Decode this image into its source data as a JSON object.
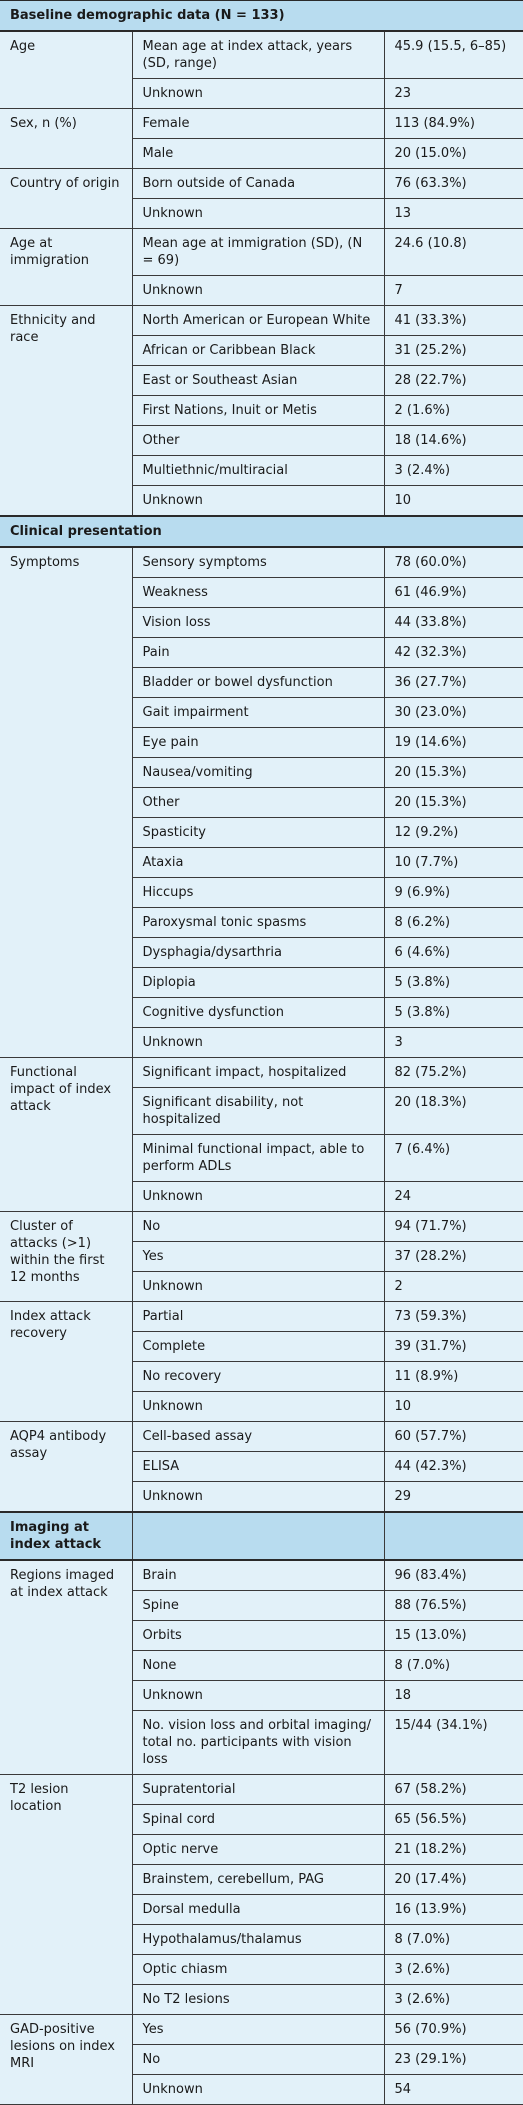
{
  "table": {
    "sections": [
      {
        "title": "Baseline demographic data (N = 133)",
        "groups": [
          {
            "label": "Age",
            "rows": [
              [
                "Mean age at index attack, years (SD, range)",
                "45.9 (15.5, 6–85)"
              ],
              [
                "Unknown",
                "23"
              ]
            ]
          },
          {
            "label": "Sex, n (%)",
            "rows": [
              [
                "Female",
                "113 (84.9%)"
              ],
              [
                "Male",
                "20 (15.0%)"
              ]
            ]
          },
          {
            "label": "Country of origin",
            "rows": [
              [
                "Born outside of Canada",
                "76 (63.3%)"
              ],
              [
                "Unknown",
                "13"
              ]
            ]
          },
          {
            "label": "Age at immigration",
            "rows": [
              [
                "Mean age at immigration (SD), (N = 69)",
                "24.6 (10.8)"
              ],
              [
                "Unknown",
                "7"
              ]
            ]
          },
          {
            "label": "Ethnicity and race",
            "rows": [
              [
                "North American or European White",
                "41 (33.3%)"
              ],
              [
                "African or Caribbean Black",
                "31 (25.2%)"
              ],
              [
                "East or Southeast Asian",
                "28 (22.7%)"
              ],
              [
                "First Nations, Inuit or Metis",
                "2 (1.6%)"
              ],
              [
                "Other",
                "18 (14.6%)"
              ],
              [
                "Multiethnic/multiracial",
                "3 (2.4%)"
              ],
              [
                "Unknown",
                "10"
              ]
            ]
          }
        ]
      },
      {
        "title": "Clinical presentation",
        "groups": [
          {
            "label": "Symptoms",
            "rows": [
              [
                "Sensory symptoms",
                "78 (60.0%)"
              ],
              [
                "Weakness",
                "61 (46.9%)"
              ],
              [
                "Vision loss",
                "44 (33.8%)"
              ],
              [
                "Pain",
                "42 (32.3%)"
              ],
              [
                "Bladder or bowel dysfunction",
                "36 (27.7%)"
              ],
              [
                "Gait impairment",
                "30 (23.0%)"
              ],
              [
                "Eye pain",
                "19 (14.6%)"
              ],
              [
                "Nausea/vomiting",
                "20 (15.3%)"
              ],
              [
                "Other",
                "20 (15.3%)"
              ],
              [
                "Spasticity",
                "12 (9.2%)"
              ],
              [
                "Ataxia",
                "10 (7.7%)"
              ],
              [
                "Hiccups",
                "9 (6.9%)"
              ],
              [
                "Paroxysmal tonic spasms",
                "8 (6.2%)"
              ],
              [
                "Dysphagia/dysarthria",
                "6 (4.6%)"
              ],
              [
                "Diplopia",
                "5 (3.8%)"
              ],
              [
                "Cognitive dysfunction",
                "5 (3.8%)"
              ],
              [
                "Unknown",
                "3"
              ]
            ]
          },
          {
            "label": "Functional impact of index attack",
            "rows": [
              [
                "Significant impact, hospitalized",
                "82 (75.2%)"
              ],
              [
                "Significant disability, not hospitalized",
                "20 (18.3%)"
              ],
              [
                "Minimal functional impact, able to perform ADLs",
                "7 (6.4%)"
              ],
              [
                "Unknown",
                "24"
              ]
            ]
          },
          {
            "label": "Cluster of attacks (>1) within the first 12 months",
            "rows": [
              [
                "No",
                "94 (71.7%)"
              ],
              [
                "Yes",
                "37 (28.2%)"
              ],
              [
                "Unknown",
                "2"
              ]
            ]
          },
          {
            "label": "Index attack recovery",
            "rows": [
              [
                "Partial",
                "73 (59.3%)"
              ],
              [
                "Complete",
                "39 (31.7%)"
              ],
              [
                "No recovery",
                "11 (8.9%)"
              ],
              [
                "Unknown",
                "10"
              ]
            ]
          },
          {
            "label": "AQP4 antibody assay",
            "rows": [
              [
                "Cell-based assay",
                "60 (57.7%)"
              ],
              [
                "ELISA",
                "44 (42.3%)"
              ],
              [
                "Unknown",
                "29"
              ]
            ]
          }
        ]
      },
      {
        "title": "Imaging at index attack",
        "groups": [
          {
            "label": "Regions imaged at index attack",
            "rows": [
              [
                "Brain",
                "96 (83.4%)"
              ],
              [
                "Spine",
                "88 (76.5%)"
              ],
              [
                "Orbits",
                "15 (13.0%)"
              ],
              [
                "None",
                "8 (7.0%)"
              ],
              [
                "Unknown",
                "18"
              ],
              [
                "No. vision loss and orbital imaging/ total no. participants with vision loss",
                "15/44 (34.1%)"
              ]
            ]
          },
          {
            "label": "T2 lesion location",
            "rows": [
              [
                "Supratentorial",
                "67 (58.2%)"
              ],
              [
                "Spinal cord",
                "65 (56.5%)"
              ],
              [
                "Optic nerve",
                "21 (18.2%)"
              ],
              [
                "Brainstem, cerebellum, PAG",
                "20 (17.4%)"
              ],
              [
                "Dorsal medulla",
                "16 (13.9%)"
              ],
              [
                "Hypothalamus/thalamus",
                "8 (7.0%)"
              ],
              [
                "Optic chiasm",
                "3 (2.6%)"
              ],
              [
                "No T2 lesions",
                "3 (2.6%)"
              ]
            ]
          },
          {
            "label": "GAD-positive lesions on index MRI",
            "rows": [
              [
                "Yes",
                "56 (70.9%)"
              ],
              [
                "No",
                "23 (29.1%)"
              ],
              [
                "Unknown",
                "54"
              ]
            ]
          }
        ]
      }
    ]
  }
}
